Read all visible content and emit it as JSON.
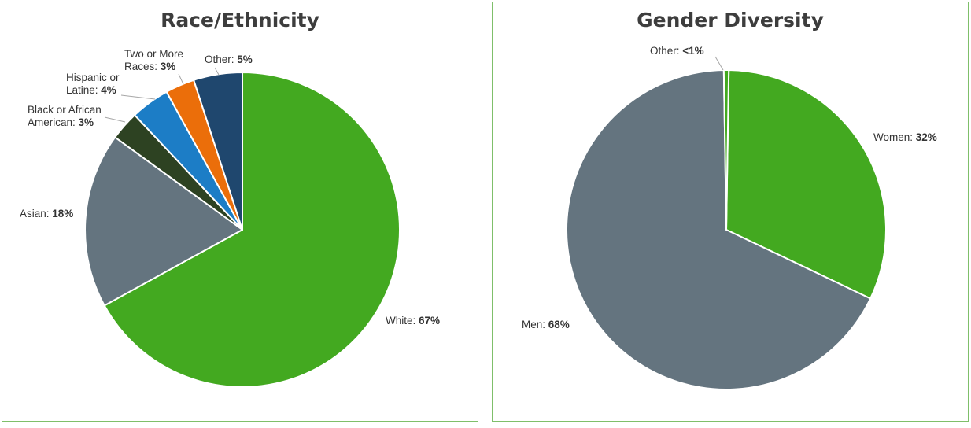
{
  "chart_data": [
    {
      "type": "pie",
      "title": "Race/Ethnicity",
      "slices": [
        {
          "label": "White:",
          "value_text": "67%",
          "value": 67,
          "color": "#43a920"
        },
        {
          "label": "Asian:",
          "value_text": "18%",
          "value": 18,
          "color": "#64747f"
        },
        {
          "label": "Black or African American:",
          "value_text": "3%",
          "value": 3,
          "color": "#2d4222"
        },
        {
          "label": "Hispanic or Latine:",
          "value_text": "4%",
          "value": 4,
          "color": "#1c7dc6"
        },
        {
          "label": "Two or More Races:",
          "value_text": "3%",
          "value": 3,
          "color": "#eb6e0a"
        },
        {
          "label": "Other:",
          "value_text": "5%",
          "value": 5,
          "color": "#1f476e"
        }
      ],
      "legend": "none"
    },
    {
      "type": "pie",
      "title": "Gender Diversity",
      "slices": [
        {
          "label": "Women:",
          "value_text": "32%",
          "value": 32,
          "color": "#43a920"
        },
        {
          "label": "Men:",
          "value_text": "68%",
          "value": 68,
          "color": "#64747f"
        },
        {
          "label": "Other:",
          "value_text": "<1%",
          "value": 0.5,
          "color": "#43a920"
        }
      ],
      "legend": "none"
    }
  ]
}
